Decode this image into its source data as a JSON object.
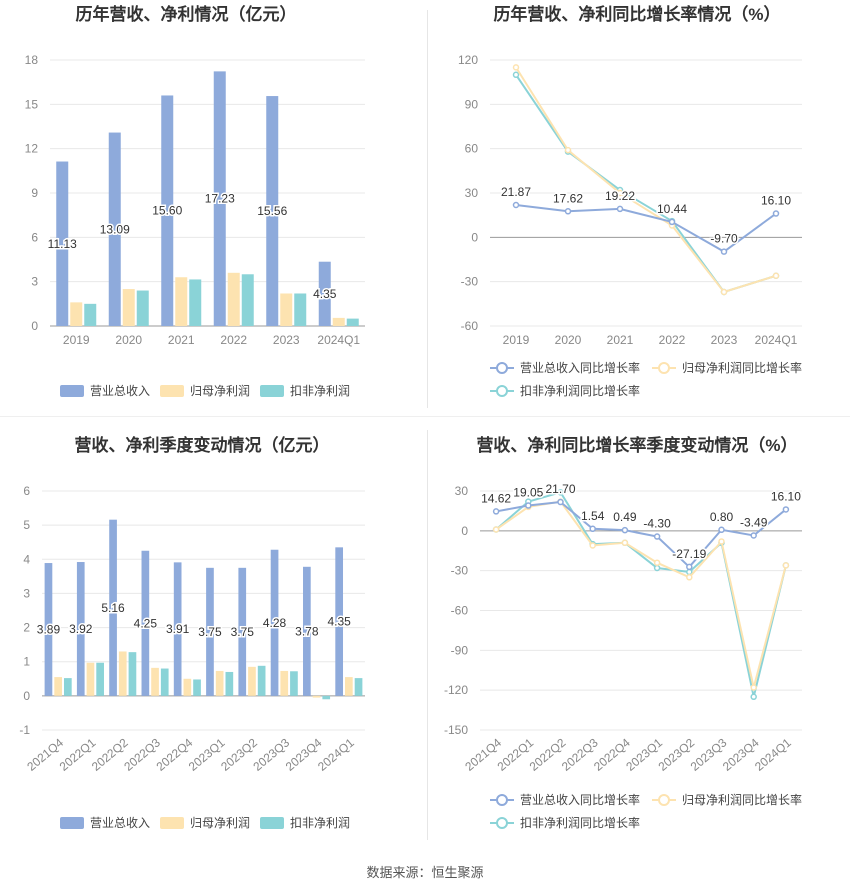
{
  "source": "数据来源：恒生聚源",
  "chart_data": [
    {
      "type": "bar",
      "title": "历年营收、净利情况（亿元）",
      "categories": [
        "2019",
        "2020",
        "2021",
        "2022",
        "2023",
        "2024Q1"
      ],
      "series": [
        {
          "name": "营业总收入",
          "values": [
            11.13,
            13.09,
            15.6,
            17.23,
            15.56,
            4.35
          ],
          "color": "#8eaadb",
          "show_labels": true
        },
        {
          "name": "归母净利润",
          "values": [
            1.6,
            2.5,
            3.3,
            3.6,
            2.2,
            0.55
          ],
          "color": "#fde3b0",
          "show_labels": false
        },
        {
          "name": "扣非净利润",
          "values": [
            1.5,
            2.4,
            3.15,
            3.5,
            2.2,
            0.5
          ],
          "color": "#8ad3d7",
          "show_labels": false
        }
      ],
      "data_labels": [
        "11.13",
        "13.09",
        "15.60",
        "17.23",
        "15.56",
        "4.35"
      ],
      "yticks": [
        "0",
        "3",
        "6",
        "9",
        "12",
        "15",
        "18"
      ],
      "ylim": [
        0,
        18
      ],
      "grid": true,
      "legend": "bottom"
    },
    {
      "type": "line",
      "title": "历年营收、净利同比增长率情况（%）",
      "categories": [
        "2019",
        "2020",
        "2021",
        "2022",
        "2023",
        "2024Q1"
      ],
      "series": [
        {
          "name": "营业总收入同比增长率",
          "values": [
            21.87,
            17.62,
            19.22,
            10.44,
            -9.7,
            16.1
          ],
          "color": "#8eaadb",
          "show_labels": true
        },
        {
          "name": "归母净利润同比增长率",
          "values": [
            115,
            59,
            30,
            8,
            -37,
            -26
          ],
          "color": "#fde3b0",
          "show_labels": false
        },
        {
          "name": "扣非净利润同比增长率",
          "values": [
            110,
            58,
            32,
            11,
            -37,
            -26
          ],
          "color": "#8ad3d7",
          "show_labels": false
        }
      ],
      "data_labels": [
        "21.87",
        "17.62",
        "19.22",
        "10.44",
        "-9.70",
        "16.10"
      ],
      "yticks": [
        "-60",
        "-30",
        "0",
        "30",
        "60",
        "90",
        "120"
      ],
      "ylim": [
        -60,
        120
      ],
      "grid": true,
      "legend": "bottom"
    },
    {
      "type": "bar",
      "title": "营收、净利季度变动情况（亿元）",
      "categories": [
        "2021Q4",
        "2022Q1",
        "2022Q2",
        "2022Q3",
        "2022Q4",
        "2023Q1",
        "2023Q2",
        "2023Q3",
        "2023Q4",
        "2024Q1"
      ],
      "series": [
        {
          "name": "营业总收入",
          "values": [
            3.89,
            3.92,
            5.16,
            4.25,
            3.91,
            3.75,
            3.75,
            4.28,
            3.78,
            4.35
          ],
          "color": "#8eaadb",
          "show_labels": true
        },
        {
          "name": "归母净利润",
          "values": [
            0.55,
            0.97,
            1.3,
            0.82,
            0.5,
            0.73,
            0.85,
            0.73,
            -0.05,
            0.55
          ],
          "color": "#fde3b0",
          "show_labels": false
        },
        {
          "name": "扣非净利润",
          "values": [
            0.52,
            0.97,
            1.28,
            0.8,
            0.48,
            0.7,
            0.88,
            0.72,
            -0.1,
            0.52
          ],
          "color": "#8ad3d7",
          "show_labels": false
        }
      ],
      "data_labels": [
        "3.89",
        "3.92",
        "5.16",
        "4.25",
        "3.91",
        "3.75",
        "3.75",
        "4.28",
        "3.78",
        "4.35"
      ],
      "yticks": [
        "-1",
        "0",
        "1",
        "2",
        "3",
        "4",
        "5",
        "6"
      ],
      "ylim": [
        -1,
        6
      ],
      "grid": true,
      "legend": "bottom"
    },
    {
      "type": "line",
      "title": "营收、净利同比增长率季度变动情况（%）",
      "categories": [
        "2021Q4",
        "2022Q1",
        "2022Q2",
        "2022Q3",
        "2022Q4",
        "2023Q1",
        "2023Q2",
        "2023Q3",
        "2023Q4",
        "2024Q1"
      ],
      "series": [
        {
          "name": "营业总收入同比增长率",
          "values": [
            14.62,
            19.05,
            21.7,
            1.54,
            0.49,
            -4.3,
            -27.19,
            0.8,
            -3.49,
            16.1
          ],
          "color": "#8eaadb",
          "show_labels": true
        },
        {
          "name": "归母净利润同比增长率",
          "values": [
            1,
            18,
            22,
            -11,
            -9,
            -24,
            -35,
            -8,
            -118,
            -26
          ],
          "color": "#fde3b0",
          "show_labels": false
        },
        {
          "name": "扣非净利润同比增长率",
          "values": [
            1,
            22,
            29,
            -10,
            -9,
            -28,
            -31,
            -9,
            -125,
            -26
          ],
          "color": "#8ad3d7",
          "show_labels": false
        }
      ],
      "data_labels": [
        "14.62",
        "19.05",
        "21.70",
        "1.54",
        "0.49",
        "-4.30",
        "-27.19",
        "0.80",
        "-3.49",
        "16.10"
      ],
      "yticks": [
        "-150",
        "-120",
        "-90",
        "-60",
        "-30",
        "0",
        "30"
      ],
      "ylim": [
        -150,
        30
      ],
      "grid": true,
      "legend": "bottom"
    }
  ]
}
